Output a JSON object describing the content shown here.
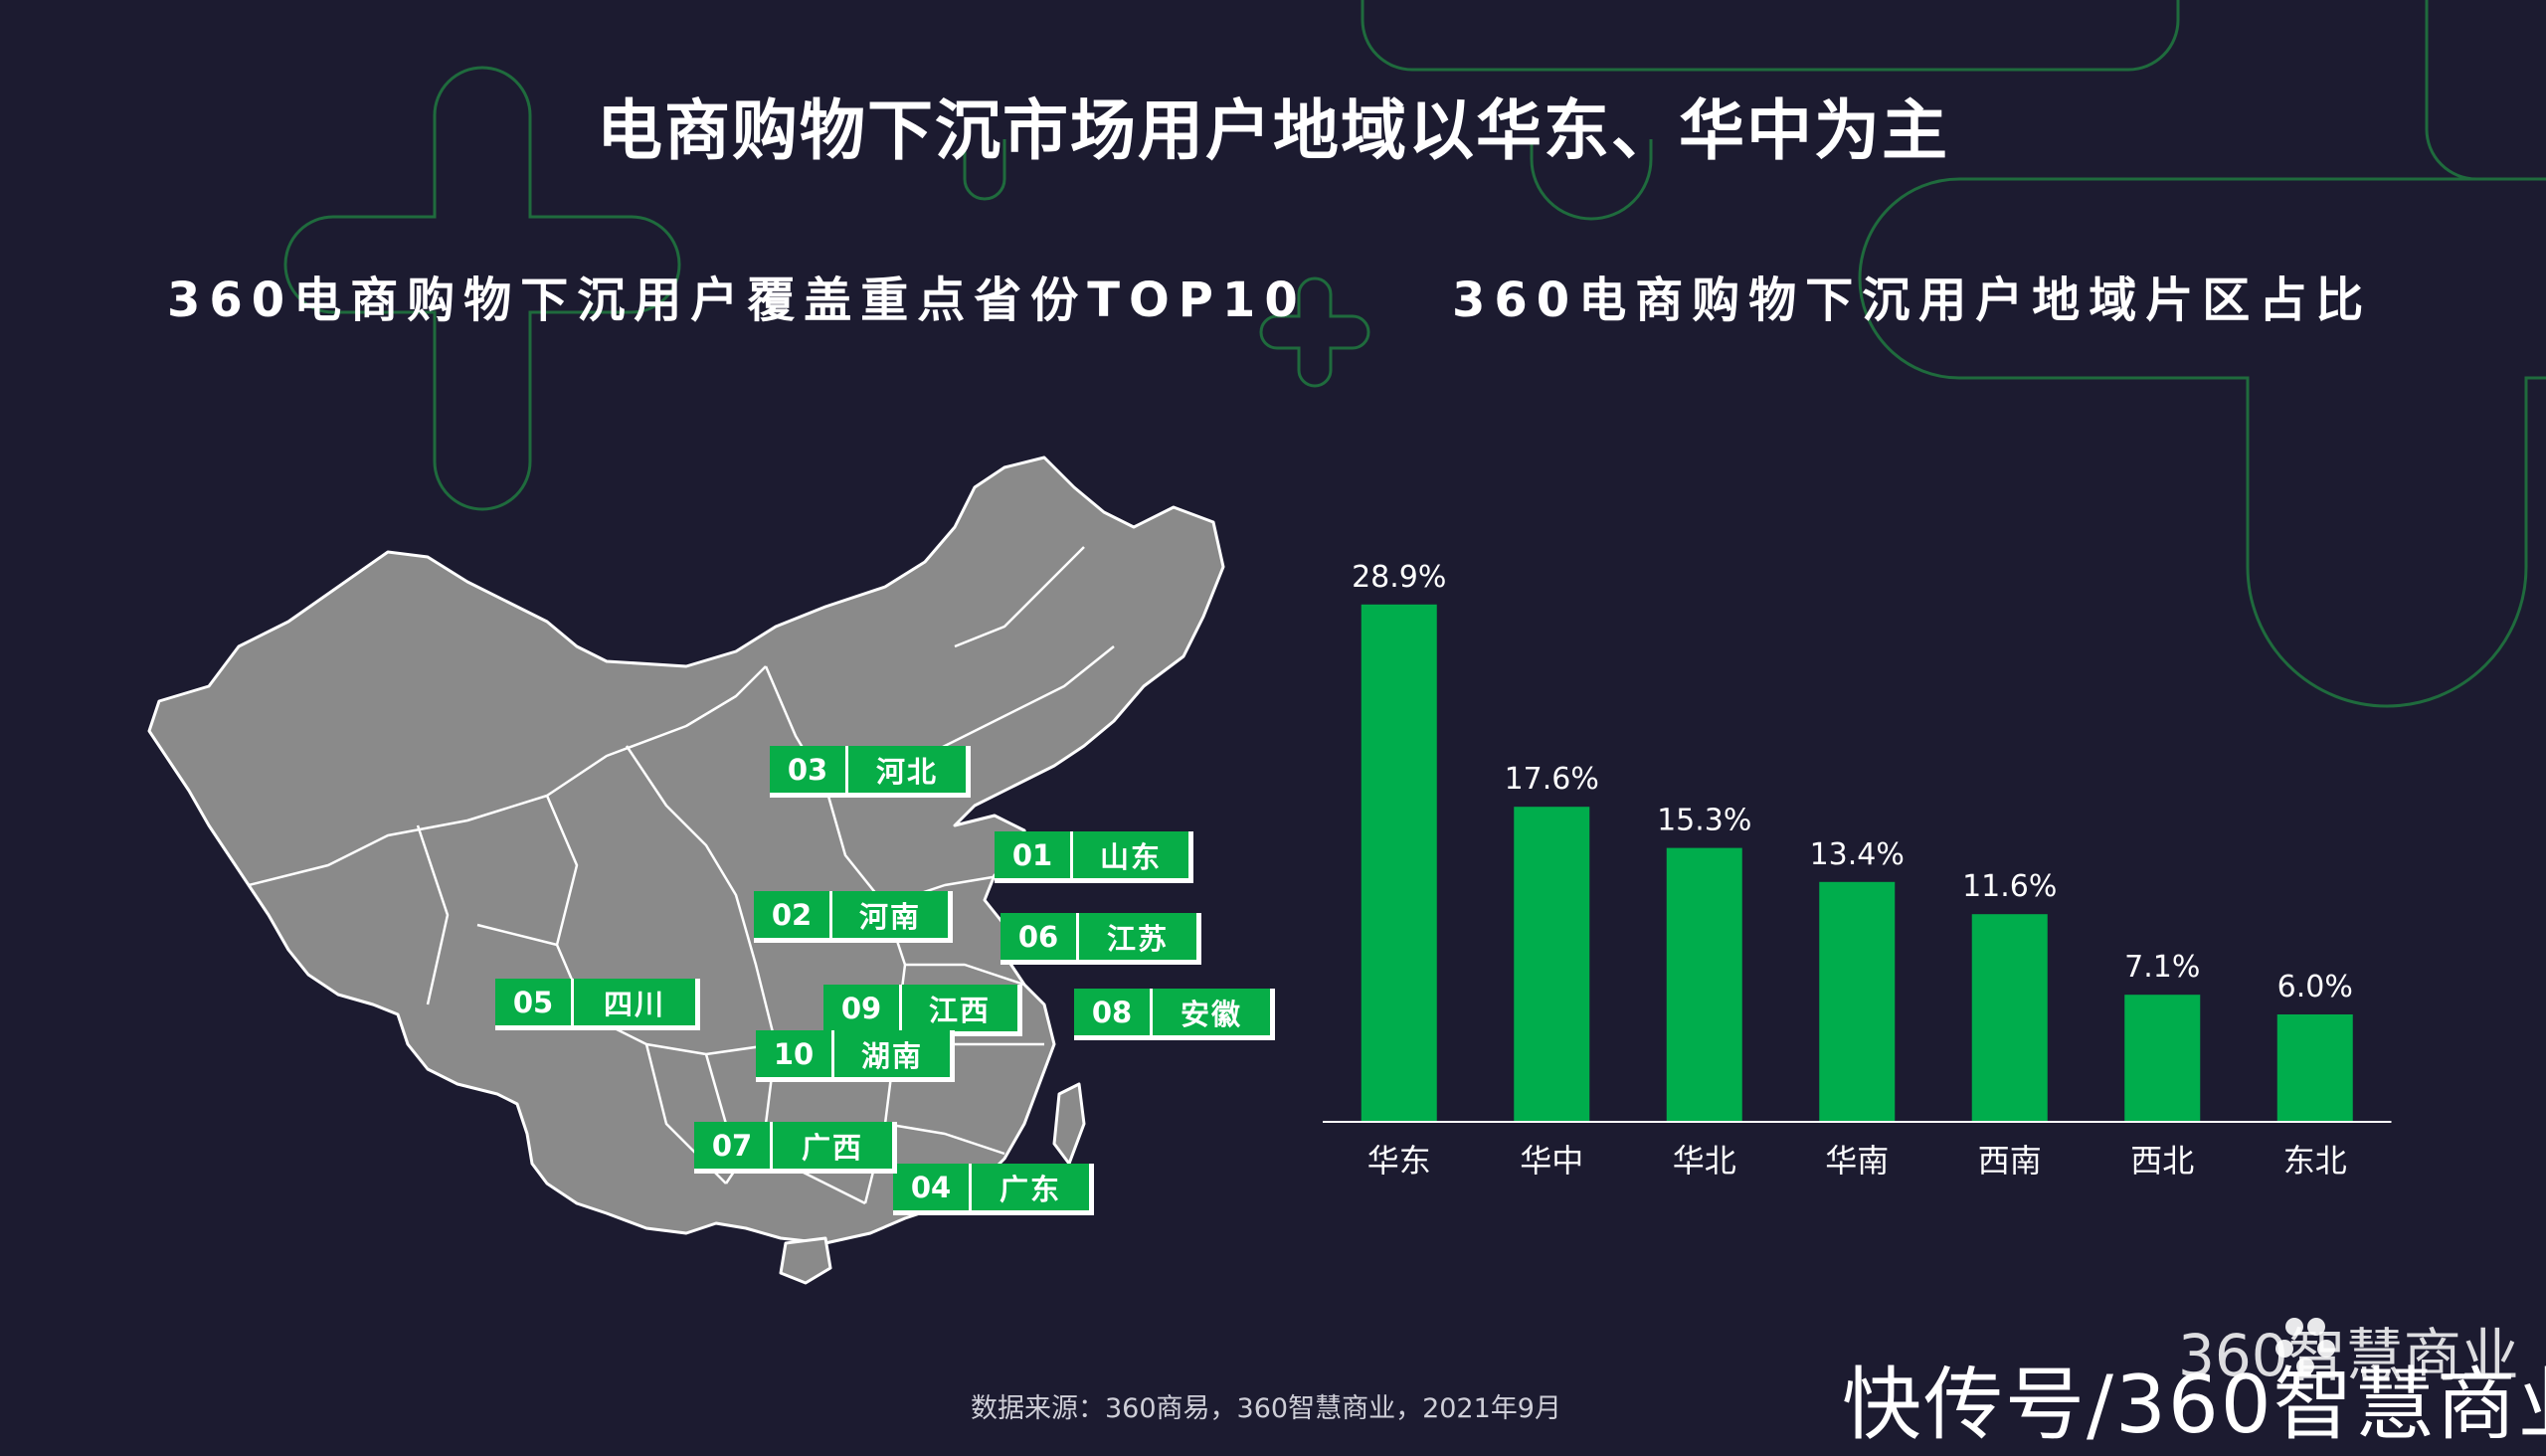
{
  "title": "电商购物下沉市场用户地域以华东、华中为主",
  "left_panel": {
    "subtitle": "360电商购物下沉用户覆盖重点省份TOP10",
    "provinces": [
      {
        "rank": "01",
        "name": "山东"
      },
      {
        "rank": "02",
        "name": "河南"
      },
      {
        "rank": "03",
        "name": "河北"
      },
      {
        "rank": "04",
        "name": "广东"
      },
      {
        "rank": "05",
        "name": "四川"
      },
      {
        "rank": "06",
        "name": "江苏"
      },
      {
        "rank": "07",
        "name": "广西"
      },
      {
        "rank": "08",
        "name": "安徽"
      },
      {
        "rank": "09",
        "name": "江西"
      },
      {
        "rank": "10",
        "name": "湖南"
      }
    ]
  },
  "right_panel": {
    "subtitle": "360电商购物下沉用户地域片区占比"
  },
  "chart_data": {
    "type": "bar",
    "categories": [
      "华东",
      "华中",
      "华北",
      "华南",
      "西南",
      "西北",
      "东北"
    ],
    "values": [
      28.9,
      17.6,
      15.3,
      13.4,
      11.6,
      7.1,
      6.0
    ],
    "data_labels": [
      "28.9%",
      "17.6%",
      "15.3%",
      "13.4%",
      "11.6%",
      "7.1%",
      "6.0%"
    ],
    "unit": "%",
    "ylim": [
      0,
      30
    ],
    "grid": false,
    "legend": "none",
    "bar_color": "#00ad4c"
  },
  "source": "数据来源：360商易，360智慧商业，2021年9月",
  "brand_logo": "360智慧商业",
  "watermark": "快传号/360智慧商业",
  "colors": {
    "background": "#1c1b30",
    "accent": "#07ad47",
    "map": "#8a8a8a"
  }
}
